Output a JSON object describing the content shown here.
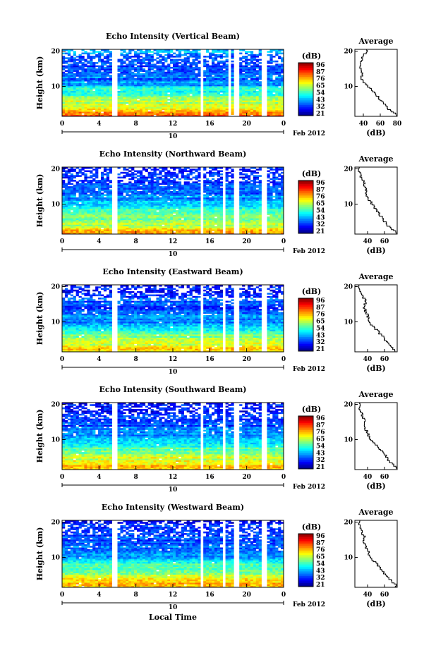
{
  "chart_data": [
    {
      "type": "heatmap",
      "title": "Echo Intensity (Vertical Beam)",
      "ylabel": "Height (km)",
      "x_ticks": [
        "0",
        "4",
        "8",
        "12",
        "16",
        "20",
        "0"
      ],
      "y_ticks": [
        "10",
        "20"
      ],
      "date_day": "10",
      "date_label": "Feb 2012",
      "colorbar_unit": "(dB)",
      "colorbar_ticks": [
        "96",
        "87",
        "76",
        "65",
        "54",
        "43",
        "32",
        "21"
      ],
      "xlim": [
        0,
        24
      ],
      "ylim": [
        1.5,
        20.5
      ],
      "db_range": [
        21,
        96
      ],
      "gaps_hours": [
        5.8,
        15.2,
        18.2,
        18.9,
        21.8
      ],
      "average": {
        "title": "Average",
        "xlabel": "(dB)",
        "x_ticks": [
          "40",
          "60",
          "80"
        ],
        "xlim": [
          30,
          80
        ],
        "heights_km": [
          2,
          4,
          6,
          8,
          10,
          12,
          14,
          16,
          18,
          20
        ],
        "values_db": [
          80,
          68,
          62,
          54,
          46,
          38,
          38,
          36,
          38,
          44
        ]
      }
    },
    {
      "type": "heatmap",
      "title": "Echo Intensity (Northward Beam)",
      "ylabel": "Height (km)",
      "x_ticks": [
        "0",
        "4",
        "8",
        "12",
        "16",
        "20",
        "0"
      ],
      "y_ticks": [
        "10",
        "20"
      ],
      "date_day": "10",
      "date_label": "Feb 2012",
      "colorbar_unit": "(dB)",
      "colorbar_ticks": [
        "96",
        "87",
        "76",
        "65",
        "54",
        "43",
        "32",
        "21"
      ],
      "xlim": [
        0,
        24
      ],
      "ylim": [
        1.5,
        20.5
      ],
      "db_range": [
        21,
        96
      ],
      "gaps_hours": [
        5.8,
        15.2,
        17.6,
        18.9,
        21.8
      ],
      "average": {
        "title": "Average",
        "xlabel": "(dB)",
        "x_ticks": [
          "40",
          "60"
        ],
        "xlim": [
          25,
          75
        ],
        "heights_km": [
          2,
          4,
          6,
          8,
          10,
          12,
          14,
          16,
          18,
          20
        ],
        "values_db": [
          74,
          64,
          58,
          52,
          46,
          40,
          38,
          36,
          32,
          30
        ]
      }
    },
    {
      "type": "heatmap",
      "title": "Echo Intensity (Eastward Beam)",
      "ylabel": "Height (km)",
      "x_ticks": [
        "0",
        "4",
        "8",
        "12",
        "16",
        "20",
        "0"
      ],
      "y_ticks": [
        "10",
        "20"
      ],
      "date_day": "10",
      "date_label": "Feb 2012",
      "colorbar_unit": "(dB)",
      "colorbar_ticks": [
        "96",
        "87",
        "76",
        "65",
        "54",
        "43",
        "32",
        "21"
      ],
      "xlim": [
        0,
        24
      ],
      "ylim": [
        1.5,
        20.5
      ],
      "db_range": [
        21,
        96
      ],
      "gaps_hours": [
        5.8,
        15.2,
        17.6,
        18.9,
        21.8
      ],
      "average": {
        "title": "Average",
        "xlabel": "(dB)",
        "x_ticks": [
          "40",
          "60"
        ],
        "xlim": [
          25,
          75
        ],
        "heights_km": [
          2,
          4,
          6,
          8,
          10,
          12,
          14,
          16,
          18,
          20
        ],
        "values_db": [
          72,
          64,
          58,
          50,
          42,
          40,
          36,
          38,
          32,
          30
        ]
      }
    },
    {
      "type": "heatmap",
      "title": "Echo Intensity (Southward Beam)",
      "ylabel": "Height (km)",
      "x_ticks": [
        "0",
        "4",
        "8",
        "12",
        "16",
        "20",
        "0"
      ],
      "y_ticks": [
        "10",
        "20"
      ],
      "date_day": "10",
      "date_label": "Feb 2012",
      "colorbar_unit": "(dB)",
      "colorbar_ticks": [
        "96",
        "87",
        "76",
        "65",
        "54",
        "43",
        "32",
        "21"
      ],
      "xlim": [
        0,
        24
      ],
      "ylim": [
        1.5,
        20.5
      ],
      "db_range": [
        21,
        96
      ],
      "gaps_hours": [
        5.8,
        15.2,
        17.6,
        18.9,
        21.8
      ],
      "average": {
        "title": "Average",
        "xlabel": "(dB)",
        "x_ticks": [
          "40",
          "60"
        ],
        "xlim": [
          25,
          75
        ],
        "heights_km": [
          2,
          4,
          6,
          8,
          10,
          12,
          14,
          16,
          18,
          20
        ],
        "values_db": [
          74,
          66,
          60,
          52,
          44,
          40,
          36,
          36,
          32,
          30
        ]
      }
    },
    {
      "type": "heatmap",
      "title": "Echo Intensity (Westward Beam)",
      "ylabel": "Height (km)",
      "x_ticks": [
        "0",
        "4",
        "8",
        "12",
        "16",
        "20",
        "0"
      ],
      "y_ticks": [
        "10",
        "20"
      ],
      "date_day": "10",
      "date_label": "Feb 2012",
      "colorbar_unit": "(dB)",
      "colorbar_ticks": [
        "96",
        "87",
        "76",
        "65",
        "54",
        "43",
        "32",
        "21"
      ],
      "xlim": [
        0,
        24
      ],
      "ylim": [
        1.5,
        20.5
      ],
      "db_range": [
        21,
        96
      ],
      "gaps_hours": [
        5.8,
        15.2,
        17.6,
        18.9,
        21.8
      ],
      "average": {
        "title": "Average",
        "xlabel": "(dB)",
        "x_ticks": [
          "40",
          "60"
        ],
        "xlim": [
          25,
          75
        ],
        "heights_km": [
          2,
          4,
          6,
          8,
          10,
          12,
          14,
          16,
          18,
          20
        ],
        "values_db": [
          74,
          66,
          58,
          52,
          44,
          40,
          36,
          36,
          32,
          30
        ]
      }
    }
  ],
  "footer": {
    "xlabel": "Local Time"
  }
}
